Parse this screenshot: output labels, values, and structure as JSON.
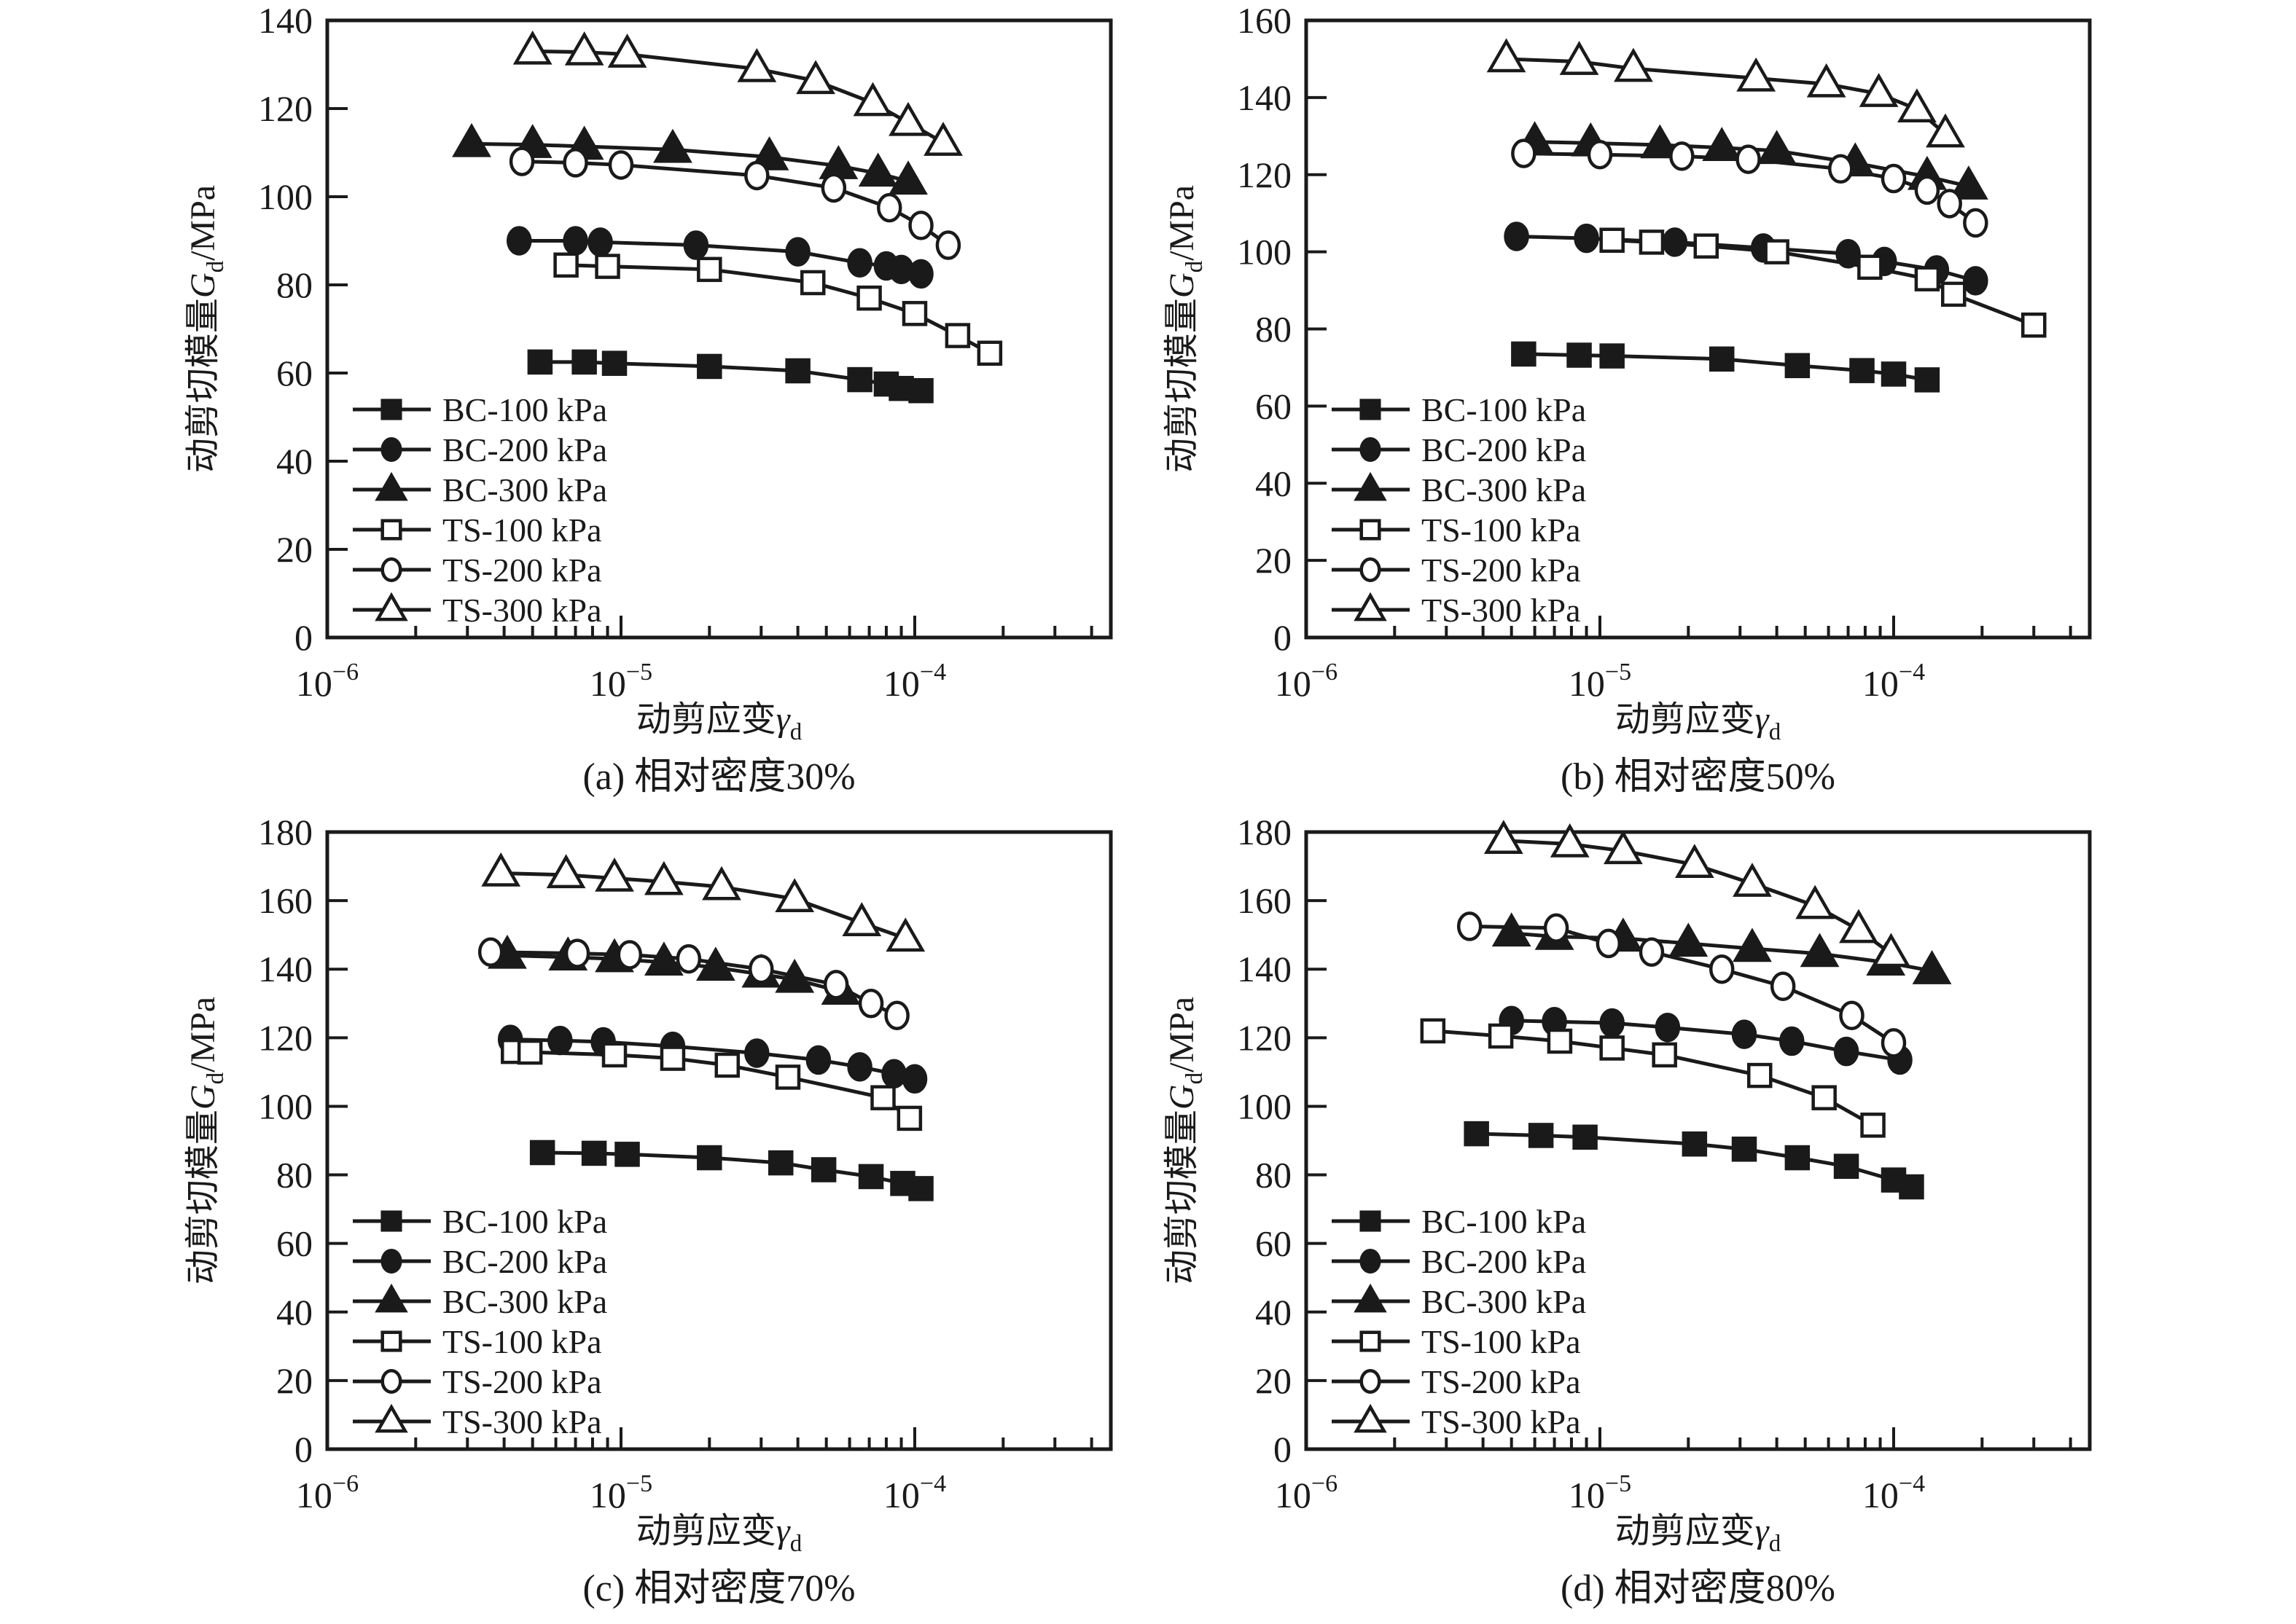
{
  "figure": {
    "background": "#ffffff",
    "ink": "#1a1a1a",
    "ylabel": {
      "text": "动剪切模量Gd/MPa",
      "prefix": "动剪切模量",
      "symbol": "G",
      "sub": "d",
      "suffix": "/MPa"
    },
    "xlabel": {
      "text": "动剪应变γd",
      "prefix": "动剪应变",
      "symbol": "γ",
      "sub": "d"
    },
    "x_tick_labels": [
      {
        "log": -6,
        "base": "10",
        "exp": "−6"
      },
      {
        "log": -5,
        "base": "10",
        "exp": "−5"
      },
      {
        "log": -4,
        "base": "10",
        "exp": "−4"
      }
    ],
    "legend_items": [
      {
        "label": "BC-100 kPa",
        "marker": "square",
        "filled": true
      },
      {
        "label": "BC-200 kPa",
        "marker": "circle",
        "filled": true
      },
      {
        "label": "BC-300 kPa",
        "marker": "triangle",
        "filled": true
      },
      {
        "label": "TS-100 kPa",
        "marker": "square",
        "filled": false
      },
      {
        "label": "TS-200 kPa",
        "marker": "circle",
        "filled": false
      },
      {
        "label": "TS-300 kPa",
        "marker": "triangle",
        "filled": false
      }
    ]
  },
  "chart_data": [
    {
      "type": "line",
      "id": "a",
      "caption": "(a) 相对密度30%",
      "xlabel": "动剪应变γd",
      "ylabel": "动剪切模量Gd/MPa",
      "xlim_log": [
        -6,
        -3.33
      ],
      "xticks_log": [
        -6,
        -5,
        -4
      ],
      "ylim": [
        0,
        140
      ],
      "ytick_step": 20,
      "grid": false,
      "legend_position": "lower-left-inside",
      "series": [
        {
          "name": "BC-100 kPa",
          "marker": "square",
          "filled": true,
          "x": [
            5.3e-06,
            7.5e-06,
            9.5e-06,
            2e-05,
            4e-05,
            6.5e-05,
            8e-05,
            9e-05,
            0.000105
          ],
          "y": [
            62.5,
            62.5,
            62.2,
            61.5,
            60.5,
            58.5,
            57.5,
            56.5,
            56
          ]
        },
        {
          "name": "BC-200 kPa",
          "marker": "circle",
          "filled": true,
          "x": [
            4.5e-06,
            7e-06,
            8.5e-06,
            1.8e-05,
            4e-05,
            6.5e-05,
            8e-05,
            9e-05,
            0.000105
          ],
          "y": [
            90,
            90,
            89.7,
            89,
            87.5,
            85,
            84.3,
            83.5,
            82.5
          ]
        },
        {
          "name": "BC-300 kPa",
          "marker": "triangle",
          "filled": true,
          "x": [
            3.1e-06,
            5e-06,
            7.5e-06,
            1.5e-05,
            3.2e-05,
            5.5e-05,
            7.5e-05,
            9.5e-05
          ],
          "y": [
            112,
            111.8,
            111.4,
            110.7,
            109,
            107,
            105.3,
            103.5
          ]
        },
        {
          "name": "TS-100 kPa",
          "marker": "square",
          "filled": false,
          "x": [
            6.5e-06,
            9e-06,
            2e-05,
            4.5e-05,
            7e-05,
            0.0001,
            0.00014,
            0.00018
          ],
          "y": [
            84.5,
            84.2,
            83.5,
            80.5,
            77,
            73.5,
            68.5,
            64.5
          ]
        },
        {
          "name": "TS-200 kPa",
          "marker": "circle",
          "filled": false,
          "x": [
            4.6e-06,
            7e-06,
            1e-05,
            2.9e-05,
            5.3e-05,
            8.2e-05,
            0.000105,
            0.00013
          ],
          "y": [
            108,
            107.7,
            107.2,
            104.8,
            102,
            97.5,
            93.5,
            89
          ]
        },
        {
          "name": "TS-300 kPa",
          "marker": "triangle",
          "filled": false,
          "x": [
            5e-06,
            7.5e-06,
            1.05e-05,
            2.9e-05,
            4.6e-05,
            7.2e-05,
            9.5e-05,
            0.000125
          ],
          "y": [
            133,
            132.8,
            132.3,
            129,
            126.3,
            121.3,
            116.8,
            112.3
          ]
        }
      ]
    },
    {
      "type": "line",
      "id": "b",
      "caption": "(b) 相对密度50%",
      "xlabel": "动剪应变γd",
      "ylabel": "动剪切模量Gd/MPa",
      "xlim_log": [
        -6,
        -3.33
      ],
      "xticks_log": [
        -6,
        -5,
        -4
      ],
      "ylim": [
        0,
        160
      ],
      "ytick_step": 20,
      "grid": false,
      "legend_position": "lower-left-inside",
      "series": [
        {
          "name": "BC-100 kPa",
          "marker": "square",
          "filled": true,
          "x": [
            5.5e-06,
            8.5e-06,
            1.1e-05,
            2.6e-05,
            4.7e-05,
            7.8e-05,
            0.0001,
            0.00013
          ],
          "y": [
            73.5,
            73.2,
            73,
            72.2,
            70.5,
            69.2,
            68.3,
            66.8
          ]
        },
        {
          "name": "BC-200 kPa",
          "marker": "circle",
          "filled": true,
          "x": [
            5.2e-06,
            9e-06,
            1.8e-05,
            3.6e-05,
            7e-05,
            9.3e-05,
            0.00014,
            0.00019
          ],
          "y": [
            104,
            103.5,
            102.5,
            101,
            99.5,
            97.5,
            95.3,
            92.5
          ]
        },
        {
          "name": "BC-300 kPa",
          "marker": "triangle",
          "filled": true,
          "x": [
            6e-06,
            9.3e-06,
            1.6e-05,
            2.6e-05,
            4e-05,
            7.4e-05,
            0.00013,
            0.00018
          ],
          "y": [
            128.5,
            128.2,
            127.7,
            127,
            126.2,
            123,
            119.5,
            117
          ]
        },
        {
          "name": "TS-100 kPa",
          "marker": "square",
          "filled": false,
          "x": [
            1.1e-05,
            1.5e-05,
            2.3e-05,
            4e-05,
            8.3e-05,
            0.00013,
            0.00016,
            0.0003
          ],
          "y": [
            103,
            102.5,
            101.5,
            100,
            96,
            93,
            89,
            81
          ]
        },
        {
          "name": "TS-200 kPa",
          "marker": "circle",
          "filled": false,
          "x": [
            5.5e-06,
            1e-05,
            1.9e-05,
            3.2e-05,
            6.6e-05,
            0.0001,
            0.00013,
            0.000155,
            0.00019
          ],
          "y": [
            125.5,
            125.2,
            124.8,
            124,
            121.5,
            119,
            116,
            112.5,
            107.5
          ]
        },
        {
          "name": "TS-300 kPa",
          "marker": "triangle",
          "filled": false,
          "x": [
            4.8e-06,
            8.5e-06,
            1.3e-05,
            3.4e-05,
            5.9e-05,
            8.9e-05,
            0.00012,
            0.00015
          ],
          "y": [
            150,
            149.3,
            147.5,
            145,
            143.5,
            141,
            137,
            130.5
          ]
        }
      ]
    },
    {
      "type": "line",
      "id": "c",
      "caption": "(c) 相对密度70%",
      "xlabel": "动剪应变γd",
      "ylabel": "动剪切模量Gd/MPa",
      "xlim_log": [
        -6,
        -3.33
      ],
      "xticks_log": [
        -6,
        -5,
        -4
      ],
      "ylim": [
        0,
        180
      ],
      "ytick_step": 20,
      "grid": false,
      "legend_position": "lower-left-inside",
      "series": [
        {
          "name": "BC-100 kPa",
          "marker": "square",
          "filled": true,
          "x": [
            5.4e-06,
            8.1e-06,
            1.05e-05,
            2e-05,
            3.5e-05,
            4.9e-05,
            7.1e-05,
            9.1e-05,
            0.000105
          ],
          "y": [
            86.5,
            86.3,
            86,
            85,
            83.5,
            81.5,
            79.5,
            77.5,
            76
          ]
        },
        {
          "name": "BC-200 kPa",
          "marker": "circle",
          "filled": true,
          "x": [
            4.2e-06,
            6.2e-06,
            8.7e-06,
            1.5e-05,
            2.9e-05,
            4.7e-05,
            6.5e-05,
            8.5e-05,
            0.0001
          ],
          "y": [
            119.5,
            119.2,
            118.8,
            117.5,
            115.5,
            113.5,
            111.5,
            109.5,
            108
          ]
        },
        {
          "name": "BC-300 kPa",
          "marker": "triangle",
          "filled": true,
          "x": [
            4.1e-06,
            6.6e-06,
            9.5e-06,
            1.4e-05,
            2.1e-05,
            3e-05,
            3.9e-05,
            5.6e-05
          ],
          "y": [
            144,
            143.5,
            143,
            142,
            140.5,
            138.5,
            137,
            133.5
          ]
        },
        {
          "name": "TS-100 kPa",
          "marker": "square",
          "filled": false,
          "x": [
            4.3e-06,
            4.9e-06,
            9.5e-06,
            1.5e-05,
            2.3e-05,
            3.7e-05,
            7.8e-05,
            9.6e-05
          ],
          "y": [
            116,
            115.8,
            115,
            114,
            112,
            108.5,
            102.5,
            96.5
          ]
        },
        {
          "name": "TS-200 kPa",
          "marker": "circle",
          "filled": false,
          "x": [
            3.6e-06,
            7.1e-06,
            1.07e-05,
            1.7e-05,
            3e-05,
            5.4e-05,
            7.1e-05,
            8.7e-05
          ],
          "y": [
            145,
            144.6,
            144.2,
            143,
            140,
            135.5,
            130,
            126.5
          ]
        },
        {
          "name": "TS-300 kPa",
          "marker": "triangle",
          "filled": false,
          "x": [
            3.9e-06,
            6.5e-06,
            9.5e-06,
            1.4e-05,
            2.2e-05,
            3.9e-05,
            6.6e-05,
            9.3e-05
          ],
          "y": [
            168,
            167.5,
            166.5,
            165.5,
            164,
            160.5,
            153.5,
            149
          ]
        }
      ]
    },
    {
      "type": "line",
      "id": "d",
      "caption": "(d) 相对密度80%",
      "xlabel": "动剪应变γd",
      "ylabel": "动剪切模量Gd/MPa",
      "xlim_log": [
        -6,
        -3.33
      ],
      "xticks_log": [
        -6,
        -5,
        -4
      ],
      "ylim": [
        0,
        180
      ],
      "ytick_step": 20,
      "grid": false,
      "legend_position": "lower-left-inside",
      "series": [
        {
          "name": "BC-100 kPa",
          "marker": "square",
          "filled": true,
          "x": [
            3.8e-06,
            6.3e-06,
            8.9e-06,
            2.1e-05,
            3.1e-05,
            4.7e-05,
            6.9e-05,
            0.0001,
            0.000115
          ],
          "y": [
            92,
            91.5,
            91,
            89,
            87.5,
            85,
            82.5,
            78.5,
            76.5
          ]
        },
        {
          "name": "BC-200 kPa",
          "marker": "circle",
          "filled": true,
          "x": [
            5e-06,
            7e-06,
            1.1e-05,
            1.7e-05,
            3.1e-05,
            4.5e-05,
            6.9e-05,
            0.000105
          ],
          "y": [
            125,
            124.7,
            124.3,
            123,
            121,
            119,
            116,
            113.5
          ]
        },
        {
          "name": "BC-300 kPa",
          "marker": "triangle",
          "filled": true,
          "x": [
            5e-06,
            7e-06,
            1.2e-05,
            2e-05,
            3.3e-05,
            5.6e-05,
            9.4e-05,
            0.000135
          ],
          "y": [
            150.5,
            149.5,
            149,
            147.5,
            146,
            144.5,
            142,
            139.5
          ]
        },
        {
          "name": "TS-100 kPa",
          "marker": "square",
          "filled": false,
          "x": [
            2.7e-06,
            4.6e-06,
            7.3e-06,
            1.1e-05,
            1.66e-05,
            3.5e-05,
            5.8e-05,
            8.5e-05
          ],
          "y": [
            122,
            120.5,
            119,
            117,
            115,
            109,
            102.5,
            94.5
          ]
        },
        {
          "name": "TS-200 kPa",
          "marker": "circle",
          "filled": false,
          "x": [
            3.6e-06,
            7.1e-06,
            1.07e-05,
            1.5e-05,
            2.6e-05,
            4.2e-05,
            7.2e-05,
            0.0001
          ],
          "y": [
            152.5,
            152,
            147.5,
            145,
            140,
            135,
            126.5,
            118.5
          ]
        },
        {
          "name": "TS-300 kPa",
          "marker": "triangle",
          "filled": false,
          "x": [
            4.7e-06,
            7.9e-06,
            1.2e-05,
            2.1e-05,
            3.3e-05,
            5.4e-05,
            7.6e-05,
            9.8e-05
          ],
          "y": [
            177.5,
            176.5,
            174.5,
            170.5,
            165,
            158.5,
            151.5,
            144.5
          ]
        }
      ]
    }
  ]
}
